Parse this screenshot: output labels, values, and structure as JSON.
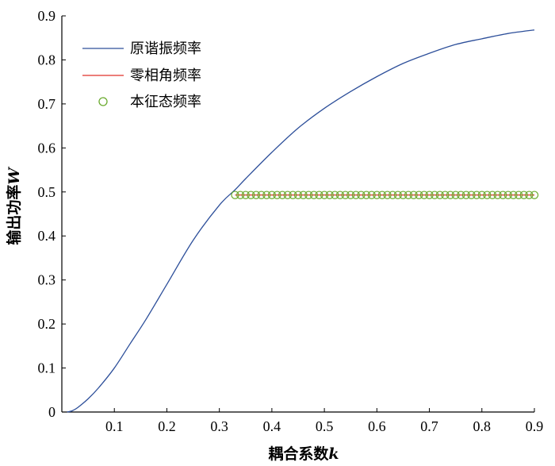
{
  "chart_data": {
    "type": "line",
    "xlabel": "耦合系数",
    "xlabel_var": "k",
    "ylabel": "输出功率",
    "ylabel_var": "W",
    "xlim": [
      0.0,
      0.9
    ],
    "ylim": [
      0.0,
      0.9
    ],
    "x_ticks": [
      "0.1",
      "0.2",
      "0.3",
      "0.4",
      "0.5",
      "0.6",
      "0.7",
      "0.8",
      "0.9"
    ],
    "y_ticks": [
      "0",
      "0.1",
      "0.2",
      "0.3",
      "0.4",
      "0.5",
      "0.6",
      "0.7",
      "0.8",
      "0.9"
    ],
    "legend_position": "top-left",
    "grid": false,
    "series": [
      {
        "name": "原谐振频率",
        "style": "line",
        "color": "#2d4f9a",
        "x": [
          0.01,
          0.02,
          0.03,
          0.05,
          0.07,
          0.1,
          0.13,
          0.16,
          0.2,
          0.25,
          0.3,
          0.33,
          0.35,
          0.4,
          0.45,
          0.5,
          0.55,
          0.6,
          0.65,
          0.7,
          0.75,
          0.8,
          0.85,
          0.9
        ],
        "y": [
          0.0,
          0.003,
          0.01,
          0.03,
          0.055,
          0.1,
          0.155,
          0.21,
          0.29,
          0.39,
          0.47,
          0.505,
          0.53,
          0.59,
          0.645,
          0.69,
          0.728,
          0.762,
          0.792,
          0.815,
          0.835,
          0.848,
          0.86,
          0.868
        ]
      },
      {
        "name": "零相角频率",
        "style": "line",
        "color": "#e0302a",
        "x": [
          0.33,
          0.9
        ],
        "y": [
          0.493,
          0.493
        ]
      },
      {
        "name": "本征态频率",
        "style": "marker",
        "color": "#6aaa2e",
        "x_start": 0.33,
        "x_end": 0.9,
        "x_step": 0.01,
        "y": 0.493
      }
    ]
  }
}
